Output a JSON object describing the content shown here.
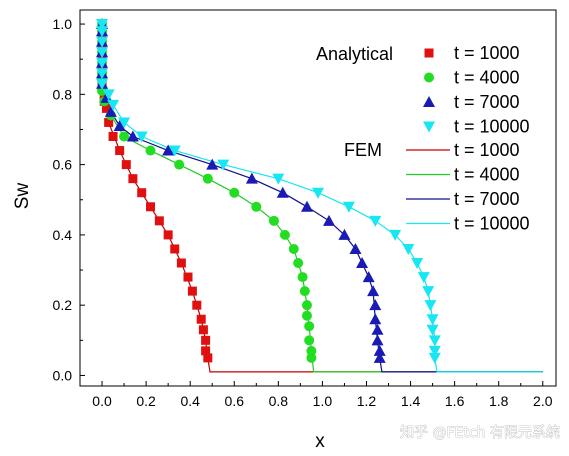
{
  "chart_data": {
    "type": "scatter",
    "xlabel": "x",
    "ylabel": "Sw",
    "xlim": [
      -0.1,
      2.06
    ],
    "ylim": [
      -0.03,
      1.04
    ],
    "xticks": [
      "0.0",
      "0.2",
      "0.4",
      "0.6",
      "0.8",
      "1.0",
      "1.2",
      "1.4",
      "1.6",
      "1.8",
      "2.0"
    ],
    "yticks": [
      "0.0",
      "0.2",
      "0.4",
      "0.6",
      "0.8",
      "1.0"
    ],
    "grid": false,
    "legend_groups": [
      "Analytical",
      "FEM"
    ],
    "series": [
      {
        "name": "t = 1000",
        "group": "Analytical",
        "marker": "square",
        "color": "#e01010",
        "points": [
          [
            0.0,
            1.0
          ],
          [
            0.0,
            0.98
          ],
          [
            0.0,
            0.96
          ],
          [
            0.0,
            0.94
          ],
          [
            0.0,
            0.92
          ],
          [
            0.0,
            0.9
          ],
          [
            0.0,
            0.88
          ],
          [
            0.0,
            0.86
          ],
          [
            0.0,
            0.84
          ],
          [
            0.0,
            0.82
          ],
          [
            0.01,
            0.8
          ],
          [
            0.01,
            0.78
          ],
          [
            0.02,
            0.76
          ],
          [
            0.03,
            0.72
          ],
          [
            0.05,
            0.68
          ],
          [
            0.08,
            0.64
          ],
          [
            0.11,
            0.6
          ],
          [
            0.14,
            0.56
          ],
          [
            0.18,
            0.52
          ],
          [
            0.22,
            0.48
          ],
          [
            0.26,
            0.44
          ],
          [
            0.3,
            0.4
          ],
          [
            0.33,
            0.36
          ],
          [
            0.36,
            0.32
          ],
          [
            0.39,
            0.28
          ],
          [
            0.41,
            0.24
          ],
          [
            0.43,
            0.2
          ],
          [
            0.45,
            0.16
          ],
          [
            0.46,
            0.13
          ],
          [
            0.47,
            0.1
          ],
          [
            0.47,
            0.07
          ],
          [
            0.48,
            0.05
          ]
        ]
      },
      {
        "name": "t = 4000",
        "group": "Analytical",
        "marker": "circle",
        "color": "#22dd22",
        "points": [
          [
            0.0,
            1.0
          ],
          [
            0.0,
            0.98
          ],
          [
            0.0,
            0.95
          ],
          [
            0.0,
            0.92
          ],
          [
            0.0,
            0.89
          ],
          [
            0.0,
            0.86
          ],
          [
            0.0,
            0.84
          ],
          [
            0.0,
            0.81
          ],
          [
            0.01,
            0.78
          ],
          [
            0.04,
            0.74
          ],
          [
            0.1,
            0.68
          ],
          [
            0.22,
            0.64
          ],
          [
            0.35,
            0.6
          ],
          [
            0.48,
            0.56
          ],
          [
            0.6,
            0.52
          ],
          [
            0.7,
            0.48
          ],
          [
            0.78,
            0.44
          ],
          [
            0.83,
            0.4
          ],
          [
            0.87,
            0.36
          ],
          [
            0.89,
            0.32
          ],
          [
            0.91,
            0.28
          ],
          [
            0.92,
            0.24
          ],
          [
            0.93,
            0.2
          ],
          [
            0.93,
            0.17
          ],
          [
            0.94,
            0.14
          ],
          [
            0.94,
            0.1
          ],
          [
            0.95,
            0.07
          ],
          [
            0.95,
            0.05
          ]
        ]
      },
      {
        "name": "t = 7000",
        "group": "Analytical",
        "marker": "triangle-up",
        "color": "#1a1ab4",
        "points": [
          [
            0.0,
            1.0
          ],
          [
            0.0,
            0.98
          ],
          [
            0.0,
            0.95
          ],
          [
            0.0,
            0.92
          ],
          [
            0.0,
            0.89
          ],
          [
            0.0,
            0.86
          ],
          [
            0.0,
            0.83
          ],
          [
            0.02,
            0.79
          ],
          [
            0.04,
            0.75
          ],
          [
            0.08,
            0.71
          ],
          [
            0.14,
            0.68
          ],
          [
            0.3,
            0.64
          ],
          [
            0.5,
            0.6
          ],
          [
            0.68,
            0.56
          ],
          [
            0.82,
            0.52
          ],
          [
            0.93,
            0.48
          ],
          [
            1.03,
            0.44
          ],
          [
            1.1,
            0.4
          ],
          [
            1.15,
            0.36
          ],
          [
            1.18,
            0.32
          ],
          [
            1.21,
            0.28
          ],
          [
            1.23,
            0.24
          ],
          [
            1.24,
            0.2
          ],
          [
            1.24,
            0.16
          ],
          [
            1.25,
            0.13
          ],
          [
            1.25,
            0.1
          ],
          [
            1.26,
            0.07
          ],
          [
            1.26,
            0.05
          ]
        ]
      },
      {
        "name": "t = 10000",
        "group": "Analytical",
        "marker": "triangle-down",
        "color": "#18e6f2",
        "points": [
          [
            0.0,
            1.0
          ],
          [
            0.0,
            0.98
          ],
          [
            0.0,
            0.95
          ],
          [
            0.0,
            0.92
          ],
          [
            0.0,
            0.89
          ],
          [
            0.0,
            0.86
          ],
          [
            0.0,
            0.83
          ],
          [
            0.03,
            0.8
          ],
          [
            0.05,
            0.77
          ],
          [
            0.1,
            0.72
          ],
          [
            0.18,
            0.68
          ],
          [
            0.33,
            0.64
          ],
          [
            0.55,
            0.6
          ],
          [
            0.8,
            0.56
          ],
          [
            0.98,
            0.52
          ],
          [
            1.12,
            0.48
          ],
          [
            1.24,
            0.44
          ],
          [
            1.33,
            0.4
          ],
          [
            1.39,
            0.36
          ],
          [
            1.43,
            0.32
          ],
          [
            1.46,
            0.28
          ],
          [
            1.48,
            0.24
          ],
          [
            1.49,
            0.2
          ],
          [
            1.5,
            0.16
          ],
          [
            1.5,
            0.13
          ],
          [
            1.51,
            0.1
          ],
          [
            1.51,
            0.07
          ],
          [
            1.51,
            0.05
          ]
        ]
      },
      {
        "name": "t = 1000",
        "group": "FEM",
        "marker": "line",
        "color": "#c00000",
        "points": [
          [
            0.0,
            1.0
          ],
          [
            0.0,
            0.86
          ],
          [
            0.01,
            0.8
          ],
          [
            0.03,
            0.72
          ],
          [
            0.08,
            0.64
          ],
          [
            0.14,
            0.56
          ],
          [
            0.22,
            0.48
          ],
          [
            0.3,
            0.4
          ],
          [
            0.36,
            0.32
          ],
          [
            0.41,
            0.24
          ],
          [
            0.45,
            0.16
          ],
          [
            0.47,
            0.1
          ],
          [
            0.48,
            0.05
          ],
          [
            0.49,
            0.01
          ],
          [
            2.0,
            0.01
          ]
        ]
      },
      {
        "name": "t = 4000",
        "group": "FEM",
        "marker": "line",
        "color": "#22cc22",
        "points": [
          [
            0.0,
            1.0
          ],
          [
            0.0,
            0.86
          ],
          [
            0.01,
            0.78
          ],
          [
            0.04,
            0.74
          ],
          [
            0.1,
            0.68
          ],
          [
            0.22,
            0.64
          ],
          [
            0.35,
            0.6
          ],
          [
            0.48,
            0.56
          ],
          [
            0.6,
            0.52
          ],
          [
            0.7,
            0.48
          ],
          [
            0.78,
            0.44
          ],
          [
            0.83,
            0.4
          ],
          [
            0.87,
            0.36
          ],
          [
            0.89,
            0.32
          ],
          [
            0.91,
            0.28
          ],
          [
            0.93,
            0.2
          ],
          [
            0.94,
            0.14
          ],
          [
            0.95,
            0.07
          ],
          [
            0.96,
            0.01
          ],
          [
            2.0,
            0.01
          ]
        ]
      },
      {
        "name": "t = 7000",
        "group": "FEM",
        "marker": "line",
        "color": "#10108c",
        "points": [
          [
            0.0,
            1.0
          ],
          [
            0.0,
            0.86
          ],
          [
            0.02,
            0.79
          ],
          [
            0.04,
            0.75
          ],
          [
            0.08,
            0.71
          ],
          [
            0.14,
            0.68
          ],
          [
            0.3,
            0.64
          ],
          [
            0.5,
            0.6
          ],
          [
            0.68,
            0.56
          ],
          [
            0.82,
            0.52
          ],
          [
            0.93,
            0.48
          ],
          [
            1.03,
            0.44
          ],
          [
            1.1,
            0.4
          ],
          [
            1.15,
            0.36
          ],
          [
            1.18,
            0.32
          ],
          [
            1.21,
            0.28
          ],
          [
            1.23,
            0.24
          ],
          [
            1.24,
            0.16
          ],
          [
            1.25,
            0.1
          ],
          [
            1.26,
            0.05
          ],
          [
            1.27,
            0.01
          ],
          [
            2.0,
            0.01
          ]
        ]
      },
      {
        "name": "t = 10000",
        "group": "FEM",
        "marker": "line",
        "color": "#18e6f2",
        "points": [
          [
            0.0,
            1.0
          ],
          [
            0.0,
            0.86
          ],
          [
            0.03,
            0.8
          ],
          [
            0.05,
            0.77
          ],
          [
            0.1,
            0.72
          ],
          [
            0.18,
            0.68
          ],
          [
            0.33,
            0.64
          ],
          [
            0.55,
            0.6
          ],
          [
            0.8,
            0.56
          ],
          [
            0.98,
            0.52
          ],
          [
            1.12,
            0.48
          ],
          [
            1.24,
            0.44
          ],
          [
            1.33,
            0.4
          ],
          [
            1.39,
            0.36
          ],
          [
            1.43,
            0.32
          ],
          [
            1.46,
            0.28
          ],
          [
            1.48,
            0.24
          ],
          [
            1.5,
            0.16
          ],
          [
            1.51,
            0.1
          ],
          [
            1.51,
            0.05
          ],
          [
            1.52,
            0.01
          ],
          [
            2.0,
            0.01
          ]
        ]
      }
    ]
  },
  "watermark": "知乎 @FEtch 有限元系统"
}
